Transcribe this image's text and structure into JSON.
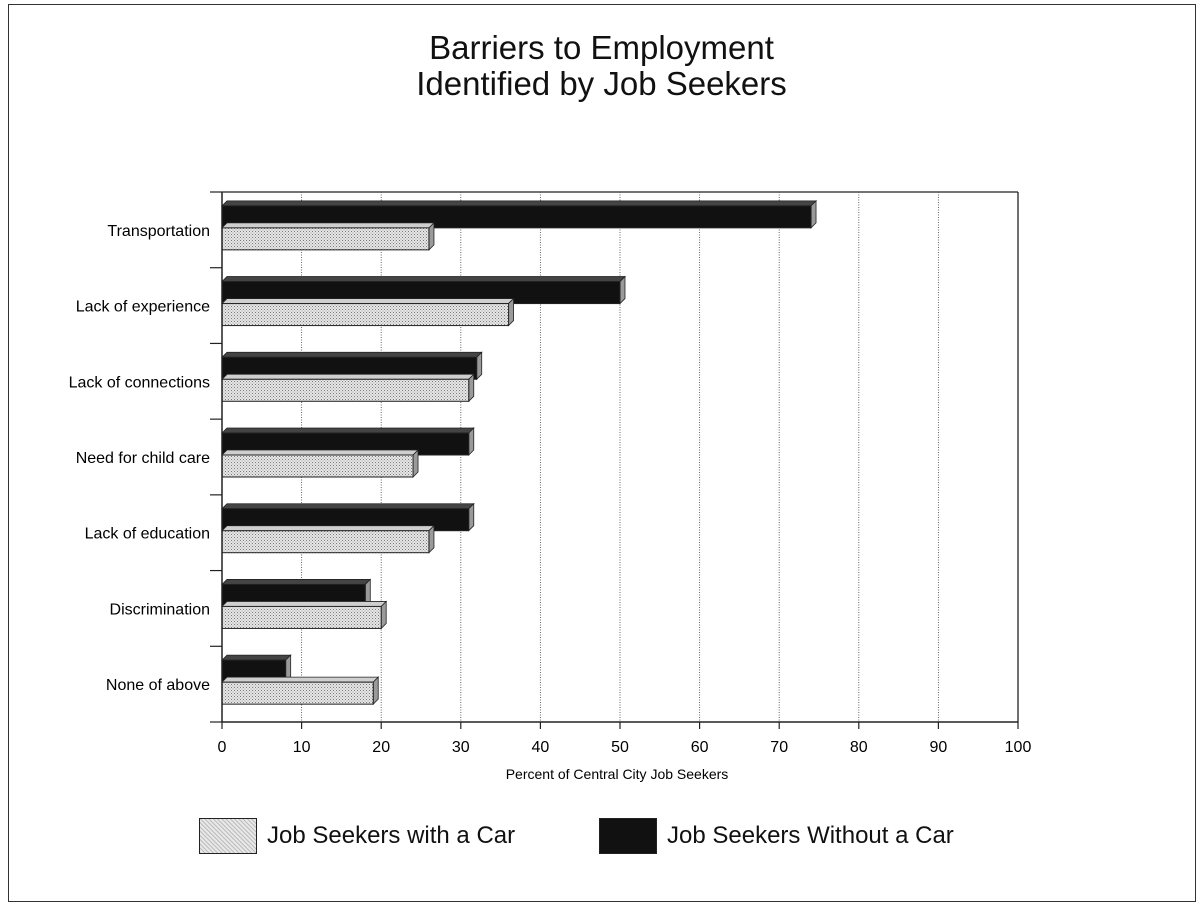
{
  "chart_data": {
    "type": "bar",
    "orientation": "horizontal",
    "title": [
      "Barriers to Employment",
      "Identified by Job Seekers"
    ],
    "xlabel": "Percent of Central City Job Seekers",
    "xlim": [
      0,
      100
    ],
    "xticks": [
      "0",
      "10",
      "20",
      "30",
      "40",
      "50",
      "60",
      "70",
      "80",
      "90",
      "100"
    ],
    "grid": "vertical",
    "legend_position": "bottom",
    "categories": [
      "Transportation",
      "Lack of experience",
      "Lack of connections",
      "Need for child care",
      "Lack of education",
      "Discrimination",
      "None of above"
    ],
    "series": [
      {
        "name": "Job Seekers Without a Car",
        "color": "#111111",
        "values": [
          74,
          50,
          32,
          31,
          31,
          18,
          8
        ]
      },
      {
        "name": "Job Seekers with a Car",
        "color": "#d8d8d8",
        "values": [
          26,
          36,
          31,
          24,
          26,
          20,
          19
        ]
      }
    ]
  }
}
